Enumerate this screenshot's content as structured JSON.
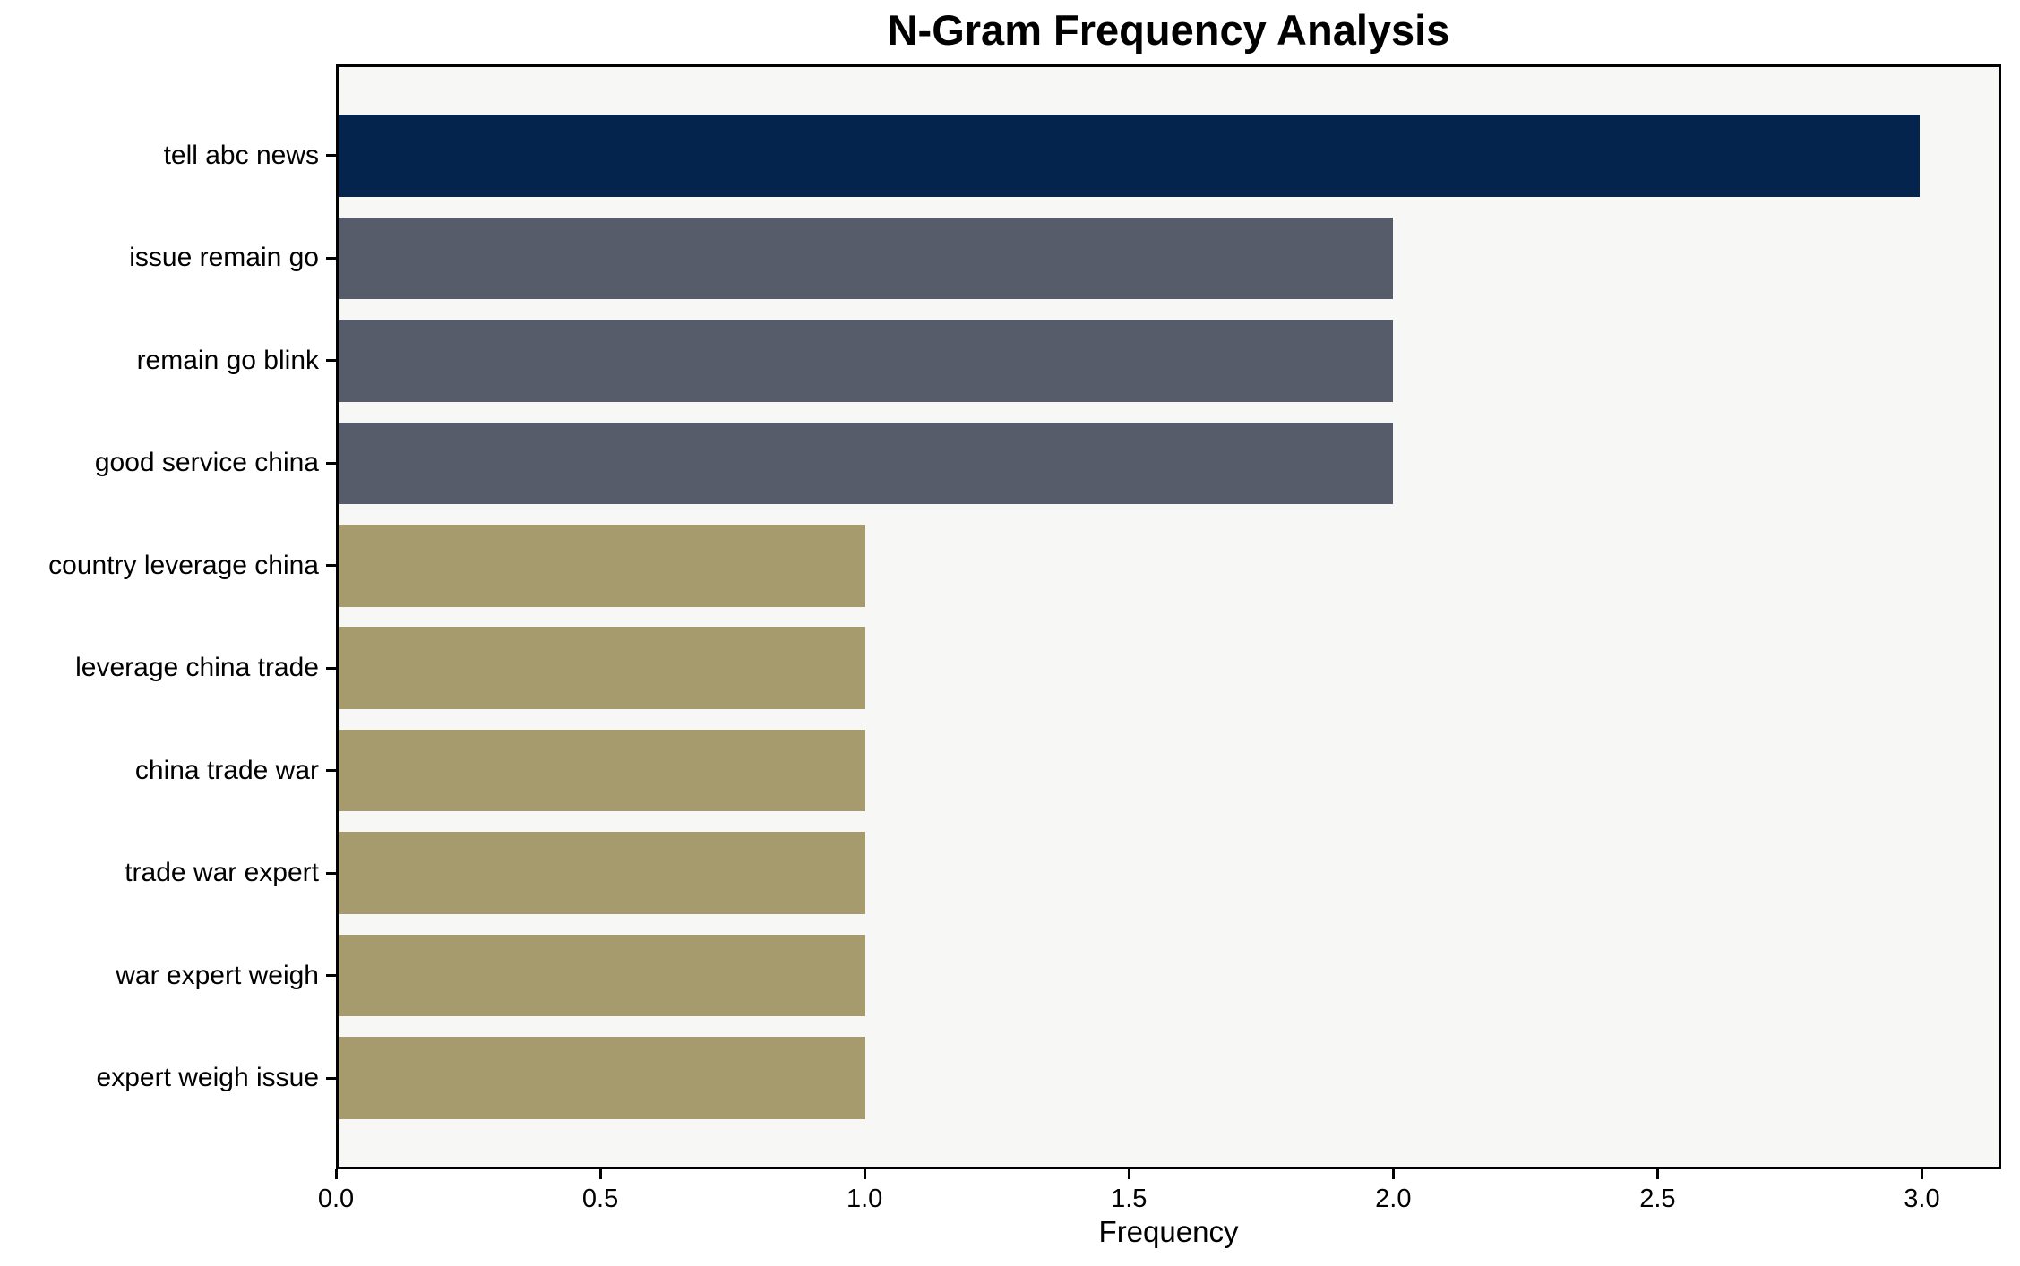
{
  "chart_data": {
    "type": "bar",
    "orientation": "horizontal",
    "title": "N-Gram Frequency Analysis",
    "xlabel": "Frequency",
    "ylabel": "",
    "categories": [
      "tell abc news",
      "issue remain go",
      "remain go blink",
      "good service china",
      "country leverage china",
      "leverage china trade",
      "china trade war",
      "trade war expert",
      "war expert weigh",
      "expert weigh issue"
    ],
    "values": [
      3,
      2,
      2,
      2,
      1,
      1,
      1,
      1,
      1,
      1
    ],
    "bar_colors": [
      "#04234d",
      "#575c6b",
      "#575c6b",
      "#575c6b",
      "#a59b6d",
      "#a59b6d",
      "#a59b6d",
      "#a59b6d",
      "#a59b6d",
      "#a59b6d"
    ],
    "xlim": [
      0,
      3.15
    ],
    "x_ticks": [
      0.0,
      0.5,
      1.0,
      1.5,
      2.0,
      2.5,
      3.0
    ],
    "x_tick_labels": [
      "0.0",
      "0.5",
      "1.0",
      "1.5",
      "2.0",
      "2.5",
      "3.0"
    ],
    "grid": false,
    "legend": false,
    "colors": {
      "plot_background": "#f7f7f6",
      "figure_background": "#ffffff",
      "spine": "#000000",
      "text": "#000000"
    }
  }
}
